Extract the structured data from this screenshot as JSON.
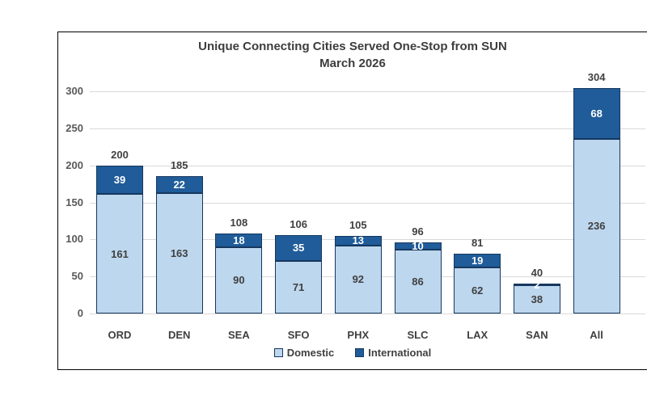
{
  "chart_data": {
    "type": "bar",
    "stacked": true,
    "title": "Unique Connecting Cities Served One-Stop from SUN",
    "subtitle": "March 2026",
    "categories": [
      "ORD",
      "DEN",
      "SEA",
      "SFO",
      "PHX",
      "SLC",
      "LAX",
      "SAN",
      "All"
    ],
    "series": [
      {
        "name": "Domestic",
        "color": "#BDD7EE",
        "values": [
          161,
          163,
          90,
          71,
          92,
          86,
          62,
          38,
          236
        ]
      },
      {
        "name": "International",
        "color": "#1F5C99",
        "values": [
          39,
          22,
          18,
          35,
          13,
          10,
          19,
          2,
          68
        ]
      }
    ],
    "totals": [
      200,
      185,
      108,
      106,
      105,
      96,
      81,
      40,
      304
    ],
    "y_ticks": [
      0,
      50,
      100,
      150,
      200,
      250,
      300
    ],
    "ylim": [
      0,
      300
    ],
    "grid": true,
    "legend_position": "bottom",
    "colors": {
      "domestic_fill": "#BDD7EE",
      "international_fill": "#1F5C99",
      "bar_border": "#17375e",
      "gridline": "#d9d9d9",
      "text": "#404040",
      "axis_text": "#595959",
      "frame_border": "#000000"
    }
  }
}
